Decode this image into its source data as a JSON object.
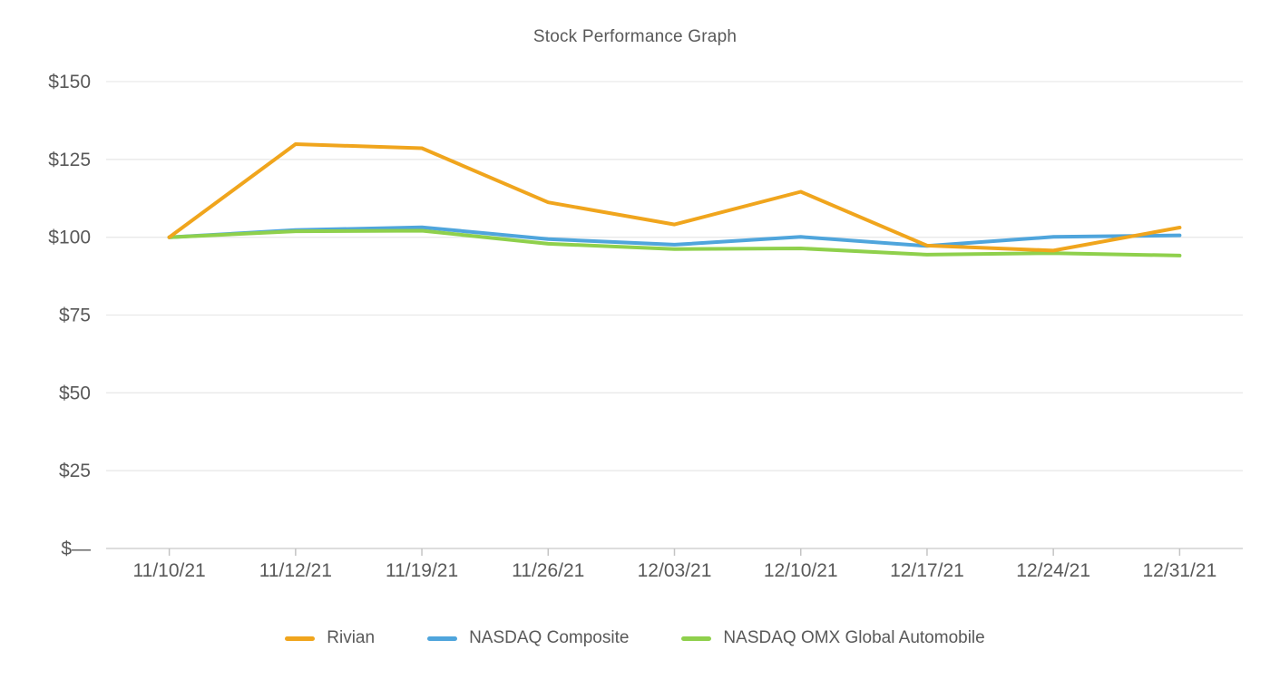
{
  "chart_data": {
    "type": "line",
    "title": "Stock Performance Graph",
    "xlabel": "",
    "ylabel": "",
    "ylim": [
      0,
      150
    ],
    "grid": "horizontal",
    "legend_position": "bottom",
    "x_categories": [
      "11/10/21",
      "11/12/21",
      "11/19/21",
      "11/26/21",
      "12/03/21",
      "12/10/21",
      "12/17/21",
      "12/24/21",
      "12/31/21"
    ],
    "y_ticks": [
      {
        "value": 150,
        "label": "$150"
      },
      {
        "value": 125,
        "label": "$125"
      },
      {
        "value": 100,
        "label": "$100"
      },
      {
        "value": 75,
        "label": "$75"
      },
      {
        "value": 50,
        "label": "$50"
      },
      {
        "value": 25,
        "label": "$25"
      },
      {
        "value": 0,
        "label": "$—"
      }
    ],
    "series": [
      {
        "name": "Rivian",
        "color": "#F0A51D",
        "values": [
          100,
          129.9,
          128.6,
          111.2,
          104.1,
          114.6,
          97.3,
          95.7,
          103.1
        ]
      },
      {
        "name": "NASDAQ Composite",
        "color": "#4FA5DC",
        "values": [
          100,
          102.3,
          103.2,
          99.4,
          97.6,
          100.1,
          97.2,
          100.1,
          100.6
        ]
      },
      {
        "name": "NASDAQ OMX Global Automobile",
        "color": "#8FD04C",
        "values": [
          100,
          101.9,
          102.1,
          97.9,
          96.2,
          96.4,
          94.4,
          94.9,
          94.1
        ]
      }
    ],
    "colors": {
      "text": "#595959",
      "grid": "#E9E9E9",
      "axis": "#D2D2D2",
      "tick": "#C4C4C4",
      "background": "#FFFFFF"
    }
  }
}
